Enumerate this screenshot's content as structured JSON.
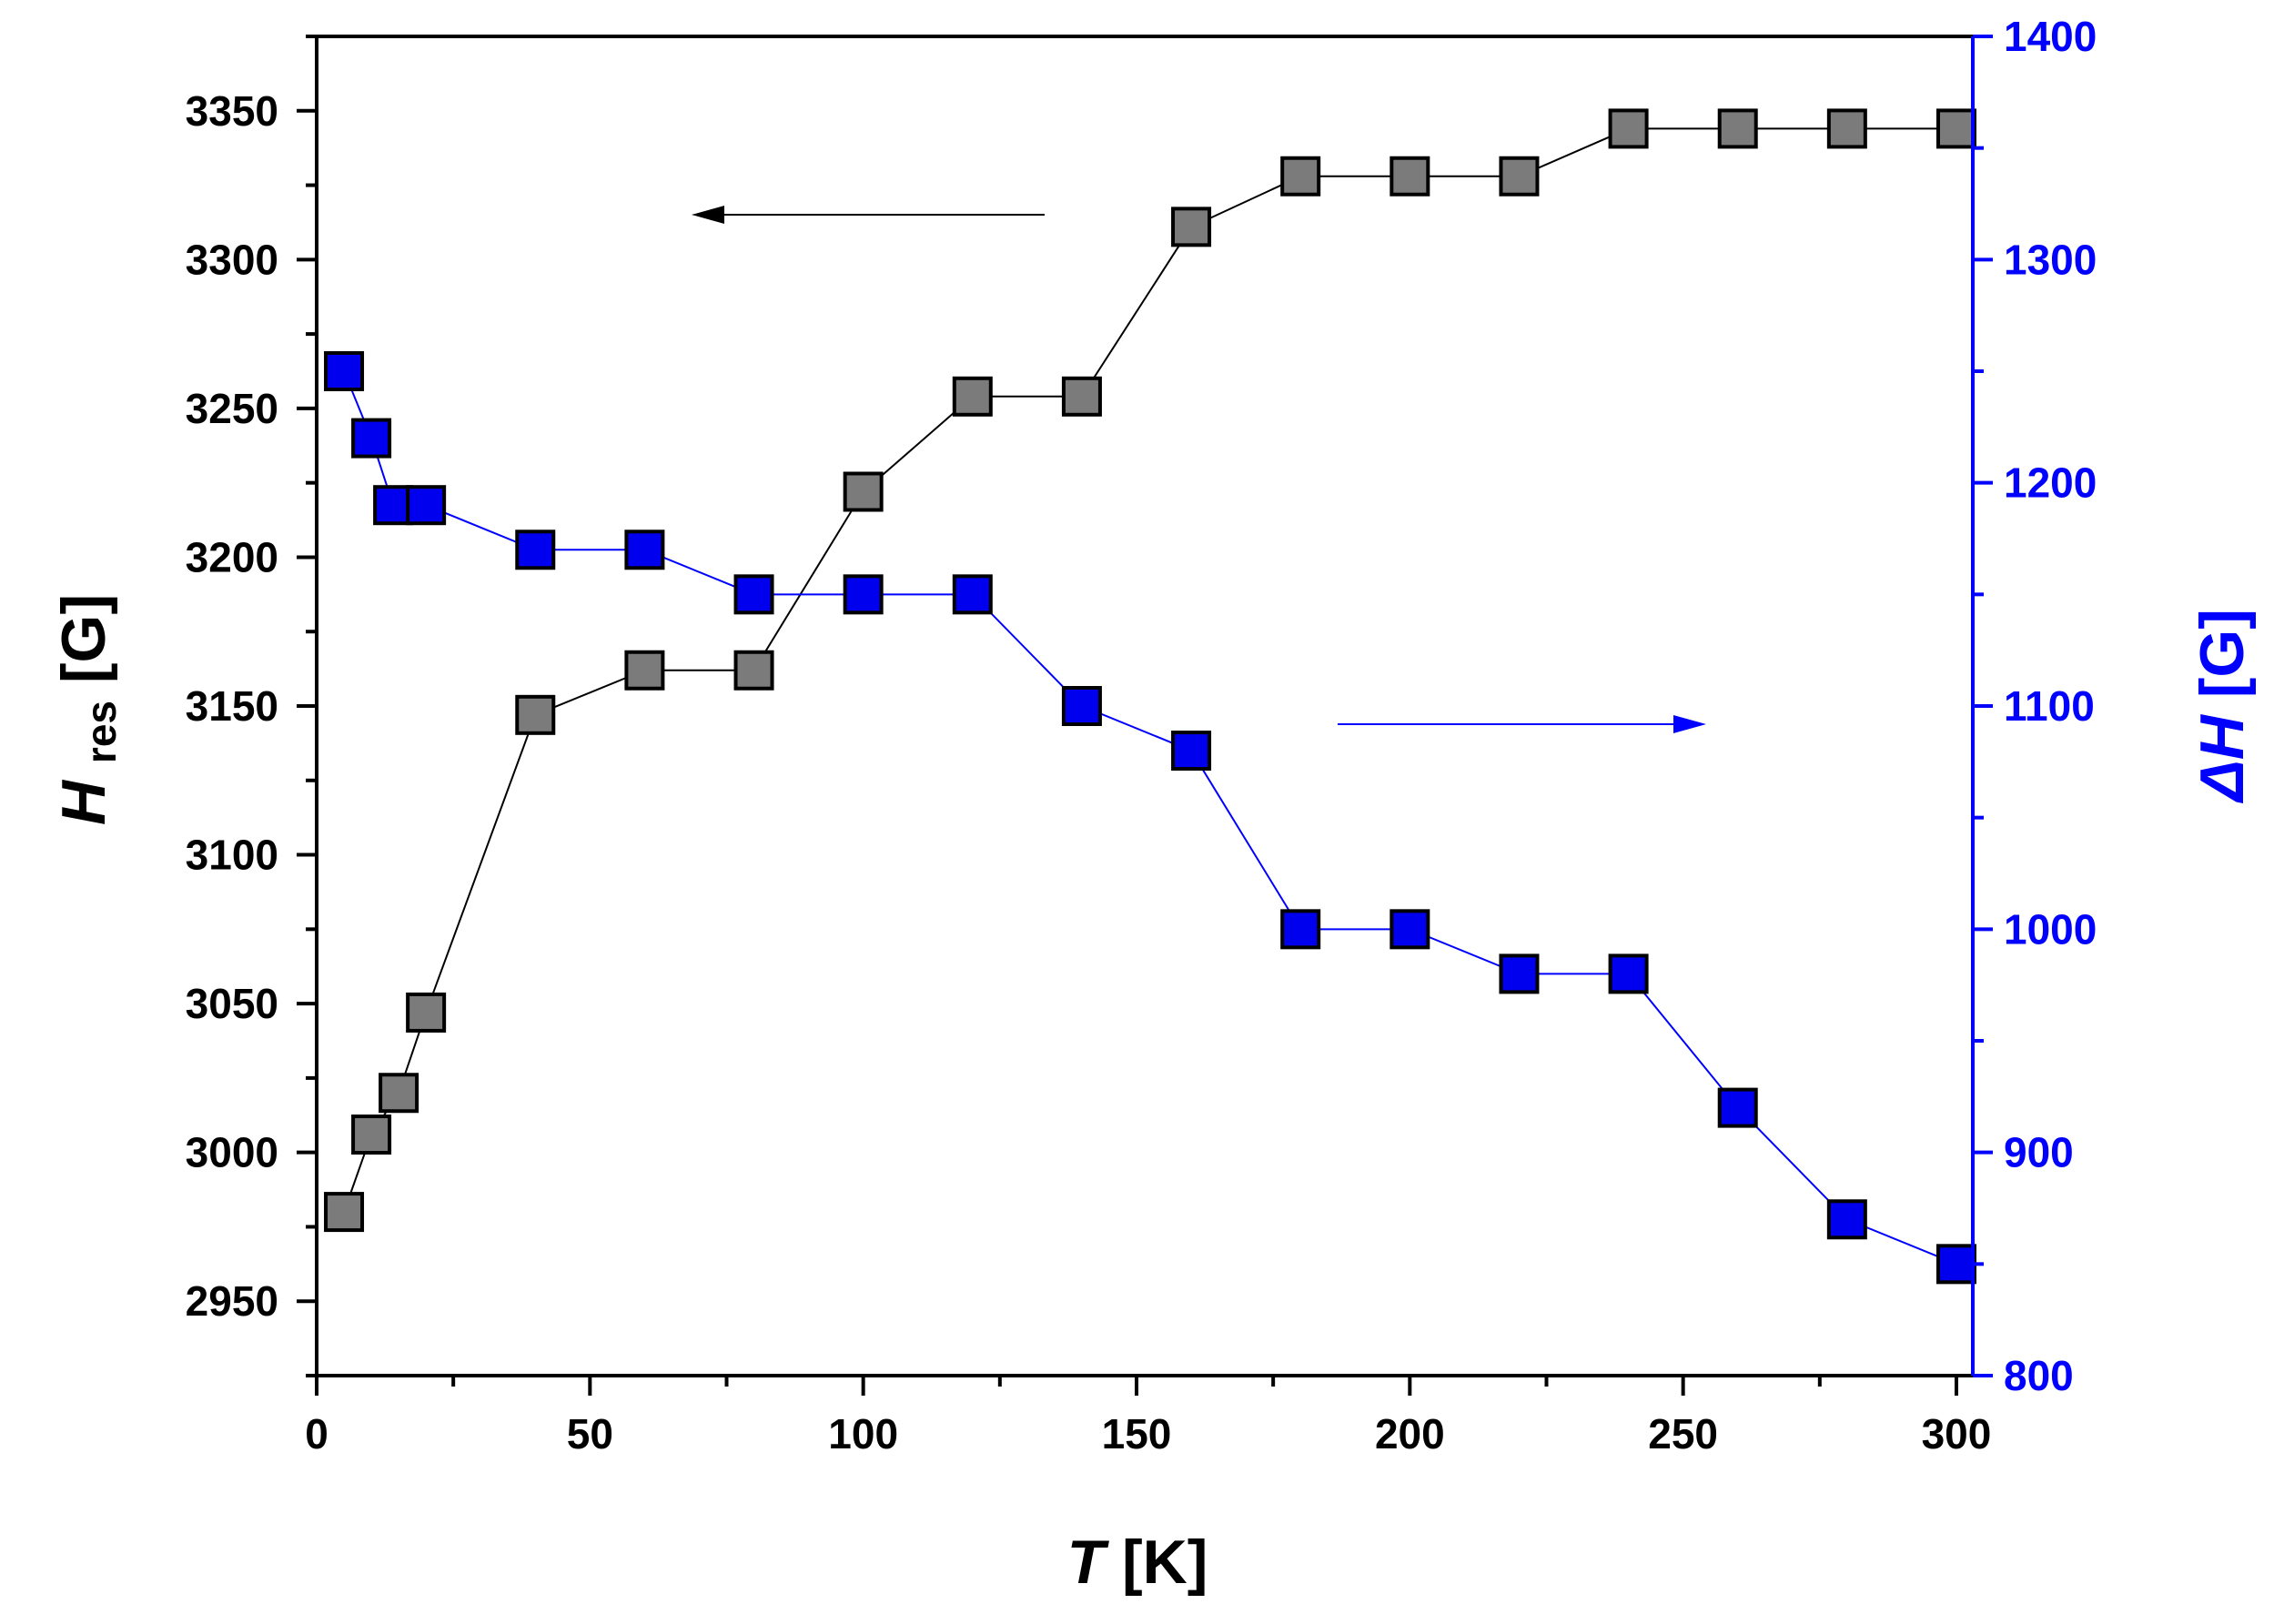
{
  "chart_data": {
    "type": "scatter",
    "title": "",
    "xlabel": {
      "symbol": "T",
      "unit": "[K]"
    },
    "ylabel_left": {
      "symbol": "H",
      "subscript": "res",
      "unit": "[G]"
    },
    "ylabel_right": {
      "symbol": "ΔH",
      "unit": "[G]"
    },
    "xlim": [
      0,
      303
    ],
    "ylim_left": [
      2925,
      3375
    ],
    "ylim_right": [
      800,
      1400
    ],
    "x_major_ticks": [
      0,
      50,
      100,
      150,
      200,
      250,
      300
    ],
    "x_tick_labels": [
      "0",
      "50",
      "100",
      "150",
      "200",
      "250",
      "300"
    ],
    "y_left_major_ticks": [
      2950,
      3000,
      3050,
      3100,
      3150,
      3200,
      3250,
      3300,
      3350
    ],
    "y_left_tick_labels": [
      "2950",
      "3000",
      "3050",
      "3100",
      "3150",
      "3200",
      "3250",
      "3300",
      "3350"
    ],
    "y_right_major_ticks": [
      800,
      900,
      1000,
      1100,
      1200,
      1300,
      1400
    ],
    "y_right_tick_labels": [
      "800",
      "900",
      "1000",
      "1100",
      "1200",
      "1300",
      "1400"
    ],
    "grid": false,
    "colors": {
      "left_axis": "#000000",
      "right_axis": "#0000ff",
      "series_hres_fill": "#7b7b7b",
      "series_dh_fill": "#0000ee",
      "marker_edge": "#000000"
    },
    "series": [
      {
        "name": "Hres",
        "axis": "left",
        "marker": "square",
        "x": [
          5,
          10,
          15,
          20,
          40,
          60,
          80,
          100,
          120,
          140,
          160,
          180,
          200,
          220,
          240,
          260,
          280,
          300
        ],
        "values": [
          2980,
          3006,
          3020,
          3047,
          3147,
          3162,
          3162,
          3222,
          3254,
          3254,
          3311,
          3328,
          3328,
          3328,
          3344,
          3344,
          3344,
          3344
        ]
      },
      {
        "name": "ΔH",
        "axis": "right",
        "marker": "square",
        "x": [
          5,
          10,
          14,
          20,
          40,
          60,
          80,
          100,
          120,
          140,
          160,
          180,
          200,
          220,
          240,
          260,
          280,
          300
        ],
        "values": [
          1250,
          1220,
          1190,
          1190,
          1170,
          1170,
          1150,
          1150,
          1150,
          1100,
          1080,
          1000,
          1000,
          980,
          980,
          920,
          870,
          850
        ]
      }
    ],
    "annotations": [
      {
        "type": "arrow",
        "points_to": "left axis",
        "series": "Hres"
      },
      {
        "type": "arrow",
        "points_to": "right axis",
        "series": "ΔH"
      }
    ]
  }
}
